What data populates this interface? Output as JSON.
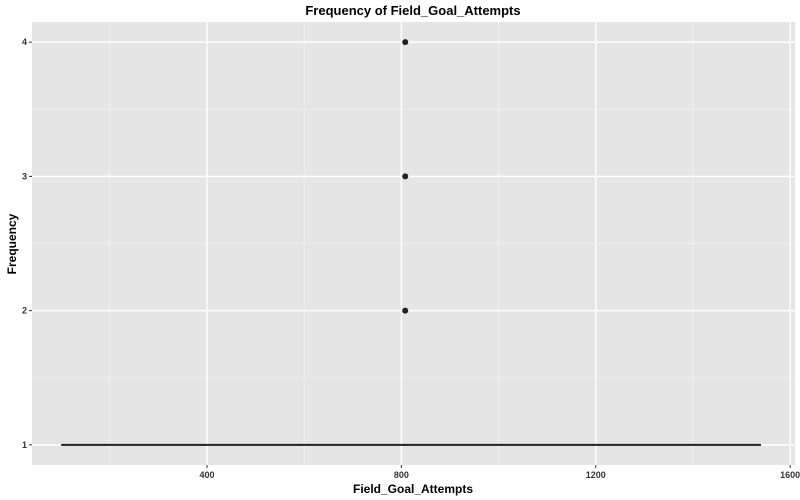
{
  "chart_data": {
    "type": "scatter",
    "title": "Frequency of Field_Goal_Attempts",
    "xlabel": "Field_Goal_Attempts",
    "ylabel": "Frequency",
    "xlim": [
      40,
      1610
    ],
    "ylim": [
      0.85,
      4.15
    ],
    "x_ticks": [
      400,
      800,
      1200,
      1600
    ],
    "x_tick_labels": [
      "400",
      "800",
      "1200",
      "1600"
    ],
    "y_ticks": [
      1,
      2,
      3,
      4
    ],
    "y_tick_labels": [
      "1",
      "2",
      "3",
      "4"
    ],
    "grid": true,
    "legend": "none",
    "series": [
      {
        "points": [
          {
            "x": 808,
            "y": 2
          },
          {
            "x": 808,
            "y": 3
          },
          {
            "x": 808,
            "y": 4
          }
        ]
      }
    ],
    "baseline": {
      "x_start": 100,
      "x_end": 1540,
      "y": 1
    },
    "colors": {
      "panel": "#e5e5e5",
      "grid_major": "#ffffff",
      "grid_minor": "#f2f2f2",
      "point": "#222222",
      "line": "#222222"
    }
  }
}
